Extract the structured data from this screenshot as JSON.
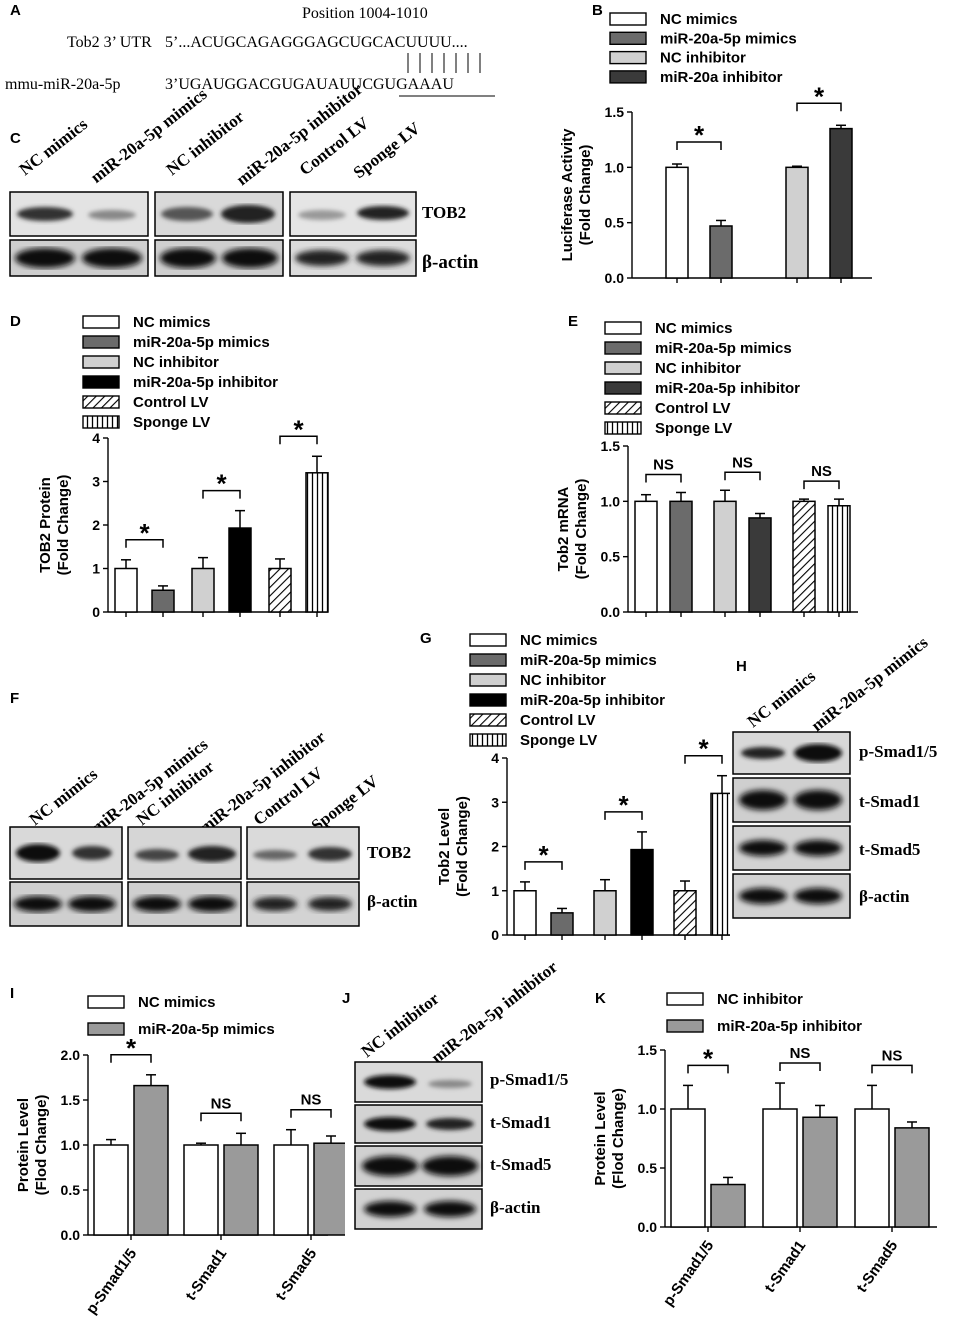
{
  "panelA": {
    "label": "A",
    "position": "Position 1004-1010",
    "row1_name": "Tob2 3’ UTR",
    "row1_seq": "5’...ACUGCAGAGGGAGCUGCACUUUU....",
    "row2_name": "mmu-miR-20a-5p",
    "row2_seq": "3’UGAUGGACGUGAUAUUCGUGAAAU"
  },
  "panelC": {
    "label": "C",
    "lanes": [
      "NC mimics",
      "miR-20a-5p mimics",
      "NC inhibitor",
      "miR-20a-5p inhibitor",
      "Control LV",
      "Sponge LV"
    ],
    "bands": [
      "TOB2",
      "β-actin"
    ]
  },
  "panelF": {
    "label": "F",
    "lanes": [
      "NC mimics",
      "miR-20a-5p mimics",
      "NC inhibitor",
      "miR-20a-5p inhibitor",
      "Control LV",
      "Sponge LV"
    ],
    "bands": [
      "TOB2",
      "β-actin"
    ]
  },
  "panelH": {
    "label": "H",
    "lanes": [
      "NC mimics",
      "miR-20a-5p mimics"
    ],
    "bands": [
      "p-Smad1/5",
      "t-Smad1",
      "t-Smad5",
      "β-actin"
    ]
  },
  "panelJ": {
    "label": "J",
    "lanes": [
      "NC inhibitor",
      "miR-20a-5p inhibitor"
    ],
    "bands": [
      "p-Smad1/5",
      "t-Smad1",
      "t-Smad5",
      "β-actin"
    ]
  },
  "chart_data": [
    {
      "panel": "B",
      "type": "bar",
      "ylabel": "Luciferase Activity (Fold Change)",
      "ylim": [
        0,
        1.5
      ],
      "yticks": [
        "0.0",
        "0.5",
        "1.0",
        "1.5"
      ],
      "legend": [
        "NC mimics",
        "miR-20a-5p mimics",
        "NC inhibitor",
        "miR-20a inhibitor"
      ],
      "values": [
        1.0,
        0.47,
        1.0,
        1.35
      ],
      "errors": [
        0.03,
        0.05,
        0.01,
        0.03
      ],
      "colors": [
        "#ffffff",
        "#6b6b6b",
        "#d0d0d0",
        "#3a3a3a"
      ],
      "sig": [
        "*",
        "*"
      ]
    },
    {
      "panel": "D",
      "type": "bar",
      "ylabel": "TOB2 Protein (Fold Change)",
      "ylim": [
        0,
        4
      ],
      "yticks": [
        "0",
        "1",
        "2",
        "3",
        "4"
      ],
      "legend": [
        "NC mimics",
        "miR-20a-5p mimics",
        "NC inhibitor",
        "miR-20a-5p inhibitor",
        "Control LV",
        "Sponge LV"
      ],
      "values": [
        1.0,
        0.5,
        1.0,
        1.93,
        1.0,
        3.2
      ],
      "errors": [
        0.2,
        0.1,
        0.25,
        0.4,
        0.22,
        0.38
      ],
      "colors": [
        "#ffffff",
        "#6b6b6b",
        "#d0d0d0",
        "#000000",
        "hatch",
        "vlines"
      ],
      "sig": [
        "*",
        "*",
        "*"
      ]
    },
    {
      "panel": "E",
      "type": "bar",
      "ylabel": "Tob2 mRNA (Fold Change)",
      "ylim": [
        0,
        1.5
      ],
      "yticks": [
        "0.0",
        "0.5",
        "1.0",
        "1.5"
      ],
      "legend": [
        "NC mimics",
        "miR-20a-5p mimics",
        "NC inhibitor",
        "miR-20a-5p inhibitor",
        "Control LV",
        "Sponge LV"
      ],
      "values": [
        1.0,
        1.0,
        1.0,
        0.85,
        1.0,
        0.96
      ],
      "errors": [
        0.06,
        0.08,
        0.1,
        0.04,
        0.02,
        0.06
      ],
      "colors": [
        "#ffffff",
        "#6b6b6b",
        "#d0d0d0",
        "#3a3a3a",
        "hatch",
        "vlines"
      ],
      "sig": [
        "NS",
        "NS",
        "NS"
      ]
    },
    {
      "panel": "G",
      "type": "bar",
      "ylabel": "Tob2 Level (Fold Change)",
      "ylim": [
        0,
        4
      ],
      "yticks": [
        "0",
        "1",
        "2",
        "3",
        "4"
      ],
      "legend": [
        "NC mimics",
        "miR-20a-5p mimics",
        "NC inhibitor",
        "miR-20a-5p inhibitor",
        "Control LV",
        "Sponge LV"
      ],
      "values": [
        1.0,
        0.5,
        1.0,
        1.93,
        1.0,
        3.2
      ],
      "errors": [
        0.2,
        0.1,
        0.25,
        0.4,
        0.22,
        0.4
      ],
      "colors": [
        "#ffffff",
        "#6b6b6b",
        "#d0d0d0",
        "#000000",
        "hatch",
        "vlines"
      ],
      "sig": [
        "*",
        "*",
        "*"
      ]
    },
    {
      "panel": "I",
      "type": "bar",
      "ylabel": "Protein Level (Flod Change)",
      "ylim": [
        0,
        2.0
      ],
      "yticks": [
        "0.0",
        "0.5",
        "1.0",
        "1.5",
        "2.0"
      ],
      "legend": [
        "NC mimics",
        "miR-20a-5p mimics"
      ],
      "categories": [
        "p-Smad1/5",
        "t-Smad1",
        "t-Smad5"
      ],
      "series": [
        {
          "name": "NC mimics",
          "values": [
            1.0,
            1.0,
            1.0
          ],
          "errors": [
            0.06,
            0.02,
            0.17
          ],
          "color": "#ffffff"
        },
        {
          "name": "miR-20a-5p mimics",
          "values": [
            1.66,
            1.0,
            1.02
          ],
          "errors": [
            0.12,
            0.13,
            0.08
          ],
          "color": "#9a9a9a"
        }
      ],
      "sig": [
        "*",
        "NS",
        "NS"
      ]
    },
    {
      "panel": "K",
      "type": "bar",
      "ylabel": "Protein Level (Flod Change)",
      "ylim": [
        0,
        1.5
      ],
      "yticks": [
        "0.0",
        "0.5",
        "1.0",
        "1.5"
      ],
      "legend": [
        "NC inhibitor",
        "miR-20a-5p inhibitor"
      ],
      "categories": [
        "p-Smad1/5",
        "t-Smad1",
        "t-Smad5"
      ],
      "series": [
        {
          "name": "NC inhibitor",
          "values": [
            1.0,
            1.0,
            1.0
          ],
          "errors": [
            0.2,
            0.22,
            0.2
          ],
          "color": "#ffffff"
        },
        {
          "name": "miR-20a-5p inhibitor",
          "values": [
            0.36,
            0.93,
            0.84
          ],
          "errors": [
            0.06,
            0.1,
            0.05
          ],
          "color": "#9a9a9a"
        }
      ],
      "sig": [
        "*",
        "NS",
        "NS"
      ]
    }
  ]
}
